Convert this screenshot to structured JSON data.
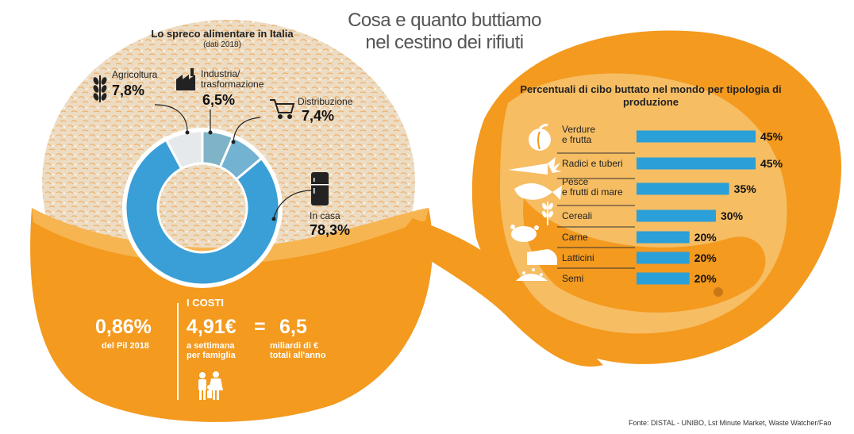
{
  "main_title_line1": "Cosa e quanto buttiamo",
  "main_title_line2": "nel cestino dei rifiuti",
  "chart_data": [
    {
      "type": "pie",
      "title": "Lo spreco alimentare in Italia",
      "subtitle": "(dati 2018)",
      "categories": [
        "Agricoltura",
        "Industria/ trasformazione",
        "Distribuzione",
        "In casa"
      ],
      "values": [
        7.8,
        6.5,
        7.4,
        78.3
      ],
      "value_labels": [
        "7,8%",
        "6,5%",
        "7,4%",
        "78,3%"
      ],
      "category_lines": [
        [
          "Agricoltura"
        ],
        [
          "Industria/",
          "trasformazione"
        ],
        [
          "Distribuzione"
        ],
        [
          "In casa"
        ]
      ],
      "colors": [
        "#e6e9ec",
        "#7fb3c8",
        "#74b2d1",
        "#3a9fd6"
      ],
      "donut": true
    },
    {
      "type": "bar",
      "orientation": "horizontal",
      "title": "Percentuali di cibo buttato nel mondo per tipologia di produzione",
      "categories": [
        "Verdure e frutta",
        "Radici e tuberi",
        "Pesce e frutti di mare",
        "Cereali",
        "Carne",
        "Latticini",
        "Semi"
      ],
      "category_lines": [
        [
          "Verdure",
          "e frutta"
        ],
        [
          "Radici e tuberi"
        ],
        [
          "Pesce",
          "e frutti di mare"
        ],
        [
          "Cereali"
        ],
        [
          "Carne"
        ],
        [
          "Latticini"
        ],
        [
          "Semi"
        ]
      ],
      "values": [
        45,
        45,
        35,
        30,
        20,
        20,
        20
      ],
      "value_labels": [
        "45%",
        "45%",
        "35%",
        "30%",
        "20%",
        "20%",
        "20%"
      ],
      "icons": [
        "apple-icon",
        "carrot-icon",
        "fish-icon",
        "wheat-icon",
        "chicken-icon",
        "cheese-icon",
        "seeds-icon"
      ],
      "bar_color": "#2a9fd8",
      "xlim": [
        0,
        45
      ]
    }
  ],
  "costs": {
    "heading": "I COSTI",
    "pil_value": "0,86%",
    "pil_label": "del Pil 2018",
    "weekly_value": "4,91€",
    "weekly_label_line1": "a settimana",
    "weekly_label_line2": "per famiglia",
    "equals": "=",
    "total_value": "6,5",
    "total_label_line1": "miliardi di €",
    "total_label_line2": "totali all'anno",
    "family_icon": "family-icon"
  },
  "source": "Fonte: DISTAL - UNIBO, Lst Minute Market, Waste Watcher/Fao",
  "colors": {
    "orange": "#f39a1f",
    "peel_light": "#f6b24a",
    "pith": "#ead8bd",
    "blue": "#2a9fd8"
  }
}
